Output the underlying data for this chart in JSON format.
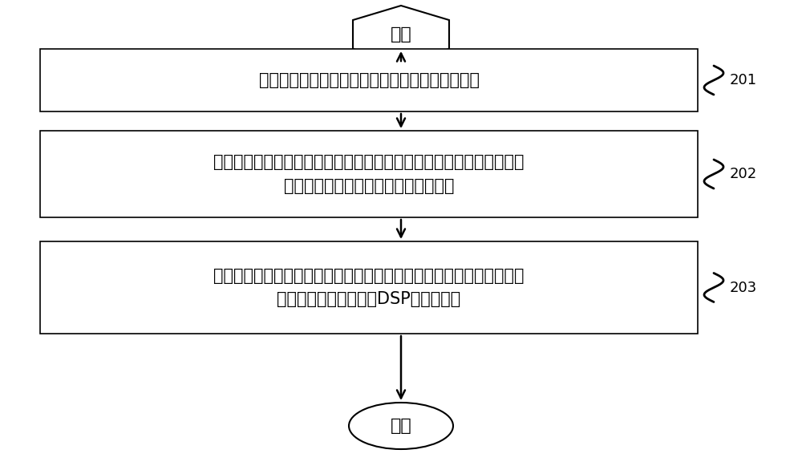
{
  "background_color": "#ffffff",
  "start_label": "开始",
  "end_label": "结束",
  "box1_text": "获取所述第二数据通道中第一缓存模块的图像数据",
  "box2_line1": "控制所述第一缓存模块的图像数据经过所述闭合回路传输至所述第二缓",
  "box2_line2": "存模块、第三缓存模块和第四缓存模块",
  "box3_line1": "比对所述第一缓存模块、第二缓存模块、第三缓存模块和第四缓存模块",
  "box3_line2": "的图像数据，生成所述DSP的自检结果",
  "label1": "201",
  "label2": "202",
  "label3": "203",
  "text_color": "#000000",
  "edge_color": "#000000",
  "fill_color": "#ffffff",
  "arrow_color": "#000000",
  "font_size_box": 15,
  "font_size_terminal": 16,
  "font_size_label": 13
}
